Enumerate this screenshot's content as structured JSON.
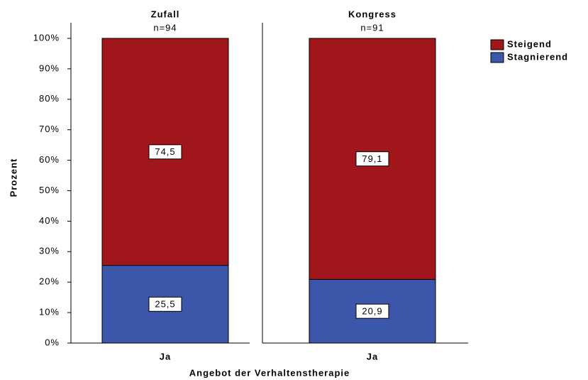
{
  "chart_data": {
    "type": "bar",
    "stacked": true,
    "ylabel": "Prozent",
    "xlabel": "Angebot der Verhaltenstherapie",
    "panel_titles": [
      "Zufall",
      "Kongress"
    ],
    "panel_subtitles": [
      "n=94",
      "n=91"
    ],
    "categories": [
      "Ja",
      "Ja"
    ],
    "series": [
      {
        "name": "Steigend",
        "color": "#a0161b",
        "values": [
          74.5,
          79.1
        ],
        "value_labels": [
          "74,5",
          "79,1"
        ]
      },
      {
        "name": "Stagnierend",
        "color": "#3c57aa",
        "values": [
          25.5,
          20.9
        ],
        "value_labels": [
          "25,5",
          "20,9"
        ]
      }
    ],
    "ylim": [
      0,
      100
    ],
    "yticks": [
      {
        "value": 0,
        "label": "0%"
      },
      {
        "value": 10,
        "label": "10%"
      },
      {
        "value": 20,
        "label": "20%"
      },
      {
        "value": 30,
        "label": "30%"
      },
      {
        "value": 40,
        "label": "40%"
      },
      {
        "value": 50,
        "label": "50%"
      },
      {
        "value": 60,
        "label": "60%"
      },
      {
        "value": 70,
        "label": "70%"
      },
      {
        "value": 80,
        "label": "80%"
      },
      {
        "value": 90,
        "label": "90%"
      },
      {
        "value": 100,
        "label": "100%"
      }
    ],
    "legend": "upper right"
  }
}
